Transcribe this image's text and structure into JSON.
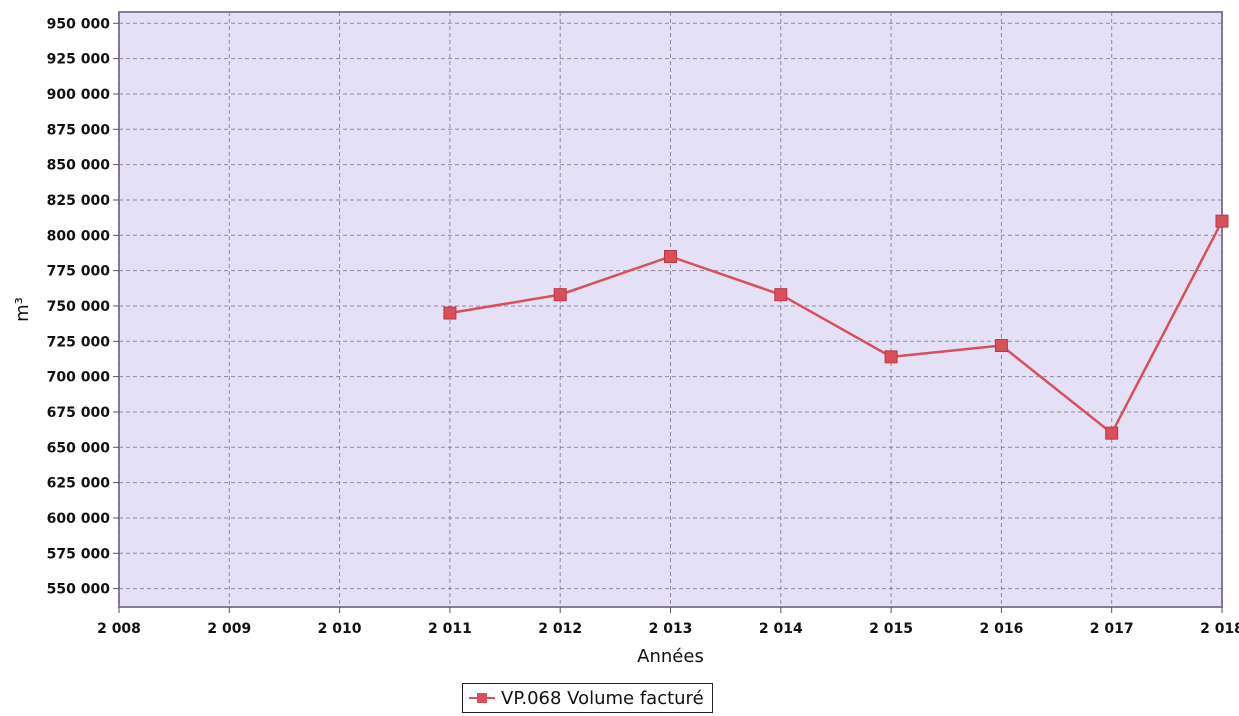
{
  "chart_data": {
    "type": "line",
    "title": "",
    "xlabel": "Années",
    "ylabel": "m³",
    "x_ticks": [
      "2 008",
      "2 009",
      "2 010",
      "2 011",
      "2 012",
      "2 013",
      "2 014",
      "2 015",
      "2 016",
      "2 017",
      "2 018"
    ],
    "y_ticks": [
      "550 000",
      "575 000",
      "600 000",
      "625 000",
      "650 000",
      "675 000",
      "700 000",
      "725 000",
      "750 000",
      "775 000",
      "800 000",
      "825 000",
      "850 000",
      "875 000",
      "900 000",
      "925 000",
      "950 000"
    ],
    "xlim": [
      2008,
      2018
    ],
    "ylim": [
      537000,
      958000
    ],
    "grid": true,
    "legend_position": "bottom-center",
    "series": [
      {
        "name": "VP.068 Volume facturé",
        "color": "#d94f5c",
        "x": [
          2011,
          2012,
          2013,
          2014,
          2015,
          2016,
          2017,
          2018
        ],
        "values": [
          745000,
          758000,
          785000,
          758000,
          714000,
          722000,
          660000,
          810000
        ]
      }
    ],
    "plot_background": "#e4e1f7"
  }
}
